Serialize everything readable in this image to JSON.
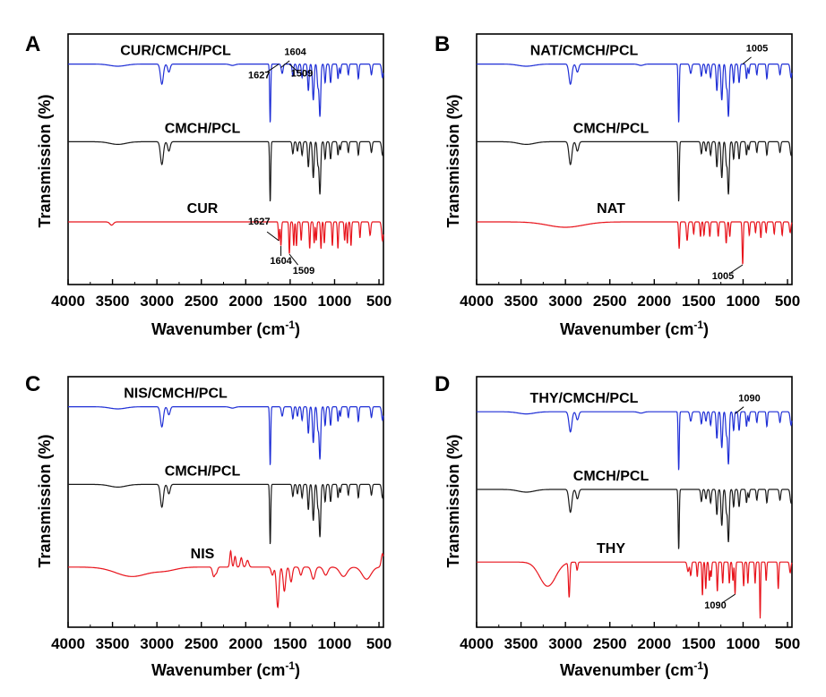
{
  "colors": {
    "blue": "#1f2fd6",
    "black": "#1a1a1a",
    "red": "#e8141c",
    "axis": "#000000"
  },
  "chart_data": [
    {
      "type": "line",
      "panel": "A",
      "xlabel": "Wavenumber (cm",
      "xlabel_sup": "-1",
      "xlabel_close": ")",
      "ylabel": "Transmission (%)",
      "xlim": [
        4000,
        450
      ],
      "x_reversed": true,
      "xticks": [
        4000,
        3500,
        3000,
        2500,
        2000,
        1500,
        1000,
        500
      ],
      "yticks": "none",
      "grid": false,
      "series": [
        {
          "name": "CUR/CMCH/PCL",
          "color": "blue",
          "baseline": 0.12,
          "profile": "composite"
        },
        {
          "name": "CMCH/PCL",
          "color": "black",
          "baseline": 0.43,
          "profile": "carrier"
        },
        {
          "name": "CUR",
          "color": "red",
          "baseline": 0.75,
          "profile": "cur"
        }
      ],
      "annotations": [
        {
          "text": "1604",
          "x": 1604,
          "series": 0
        },
        {
          "text": "1627",
          "x": 1627,
          "series": 0
        },
        {
          "text": "1509",
          "x": 1509,
          "series": 0
        },
        {
          "text": "1627",
          "x": 1627,
          "series": 2
        },
        {
          "text": "1604",
          "x": 1604,
          "series": 2
        },
        {
          "text": "1509",
          "x": 1509,
          "series": 2
        }
      ]
    },
    {
      "type": "line",
      "panel": "B",
      "xlabel": "Wavenumber (cm",
      "xlabel_sup": "-1",
      "xlabel_close": ")",
      "ylabel": "Transmission (%)",
      "xlim": [
        4000,
        450
      ],
      "x_reversed": true,
      "xticks": [
        4000,
        3500,
        3000,
        2500,
        2000,
        1500,
        1000,
        500
      ],
      "yticks": "none",
      "grid": false,
      "series": [
        {
          "name": "NAT/CMCH/PCL",
          "color": "blue",
          "baseline": 0.12,
          "profile": "composite"
        },
        {
          "name": "CMCH/PCL",
          "color": "black",
          "baseline": 0.43,
          "profile": "carrier"
        },
        {
          "name": "NAT",
          "color": "red",
          "baseline": 0.75,
          "profile": "nat"
        }
      ],
      "annotations": [
        {
          "text": "1005",
          "x": 1005,
          "series": 0
        },
        {
          "text": "1005",
          "x": 1005,
          "series": 2
        }
      ]
    },
    {
      "type": "line",
      "panel": "C",
      "xlabel": "Wavenumber (cm",
      "xlabel_sup": "-1",
      "xlabel_close": ")",
      "ylabel": "Transmission (%)",
      "xlim": [
        4000,
        450
      ],
      "x_reversed": true,
      "xticks": [
        4000,
        3500,
        3000,
        2500,
        2000,
        1500,
        1000,
        500
      ],
      "yticks": "none",
      "grid": false,
      "series": [
        {
          "name": "NIS/CMCH/PCL",
          "color": "blue",
          "baseline": 0.12,
          "profile": "composite"
        },
        {
          "name": "CMCH/PCL",
          "color": "black",
          "baseline": 0.43,
          "profile": "carrier"
        },
        {
          "name": "NIS",
          "color": "red",
          "baseline": 0.76,
          "profile": "nis"
        }
      ],
      "annotations": []
    },
    {
      "type": "line",
      "panel": "D",
      "xlabel": "Wavenumber (cm",
      "xlabel_sup": "-1",
      "xlabel_close": ")",
      "ylabel": "Transmission (%)",
      "xlim": [
        4000,
        450
      ],
      "x_reversed": true,
      "xticks": [
        4000,
        3500,
        3000,
        2500,
        2000,
        1500,
        1000,
        500
      ],
      "yticks": "none",
      "grid": false,
      "series": [
        {
          "name": "THY/CMCH/PCL",
          "color": "blue",
          "baseline": 0.14,
          "profile": "composite"
        },
        {
          "name": "CMCH/PCL",
          "color": "black",
          "baseline": 0.45,
          "profile": "carrier"
        },
        {
          "name": "THY",
          "color": "red",
          "baseline": 0.74,
          "profile": "thy"
        }
      ],
      "annotations": [
        {
          "text": "1090",
          "x": 1090,
          "series": 0
        },
        {
          "text": "1090",
          "x": 1090,
          "series": 2
        }
      ]
    }
  ]
}
